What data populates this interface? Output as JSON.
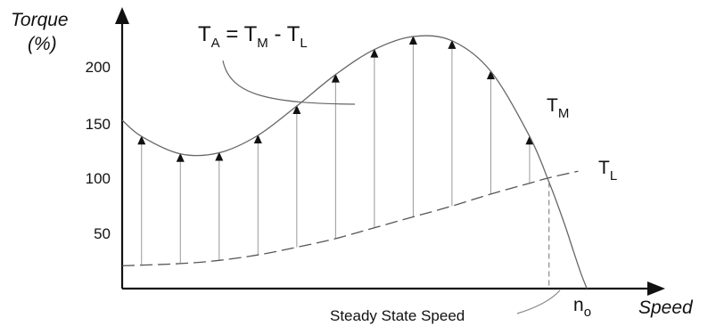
{
  "chart_data": {
    "type": "line",
    "ylabel_line1": "Torque",
    "ylabel_line2": "(%)",
    "xlabel": "Speed",
    "yticks": [
      "200",
      "150",
      "100",
      "50"
    ],
    "ytick_values": [
      200,
      150,
      100,
      50
    ],
    "ylim": [
      0,
      240
    ],
    "xlim": [
      0,
      100
    ],
    "grid": false,
    "legend": "none",
    "series": [
      {
        "label": "M",
        "x": [
          0,
          4,
          12,
          20,
          28,
          36,
          44,
          52,
          60,
          68,
          76,
          84,
          88,
          91,
          93,
          94.5,
          95.8
        ],
        "y": [
          155,
          140,
          124,
          125,
          141,
          168,
          197,
          220,
          232,
          228,
          200,
          140,
          98,
          62,
          35,
          15,
          0
        ]
      },
      {
        "label": "L",
        "x": [
          0,
          12,
          20,
          28,
          36,
          44,
          52,
          60,
          68,
          76,
          84,
          88,
          94
        ],
        "y": [
          21,
          23,
          26,
          31,
          38,
          46,
          56,
          66,
          76,
          87,
          97,
          102,
          108
        ]
      }
    ],
    "acceleration_arrows": {
      "x": [
        4,
        12,
        20,
        28,
        36,
        44,
        52,
        60,
        68,
        76,
        84
      ],
      "y_from": [
        22,
        23,
        26,
        31,
        38,
        46,
        56,
        66,
        76,
        87,
        97
      ],
      "y_to": [
        140,
        124,
        125,
        141,
        168,
        197,
        220,
        232,
        228,
        200,
        140
      ]
    },
    "steady_state_x": 88,
    "steady_state_y": 98,
    "annotations": {
      "formula": {
        "T1": "T",
        "A": "A",
        "eq": " = ",
        "T2": "T",
        "M": "M",
        "minus": " - ",
        "T3": "T",
        "L": "L"
      },
      "curve_tm": {
        "T": "T",
        "sub": "M"
      },
      "curve_tl": {
        "T": "T",
        "sub": "L"
      },
      "steady_state": "Steady State Speed",
      "no": {
        "n": "n",
        "sub": "o"
      }
    }
  }
}
